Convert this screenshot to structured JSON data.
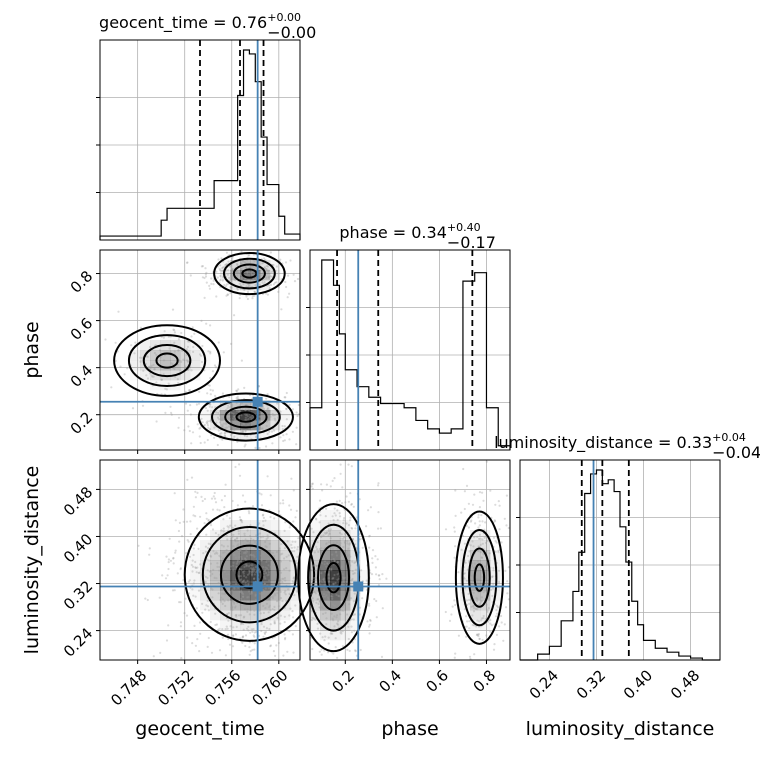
{
  "chart_data": {
    "type": "corner",
    "parameters": [
      "geocent_time",
      "phase",
      "luminosity_distance"
    ],
    "titles": [
      {
        "name": "geocent_time",
        "median": "0.76",
        "plus": "+0.00",
        "minus": "−0.00"
      },
      {
        "name": "phase",
        "median": "0.34",
        "plus": "+0.40",
        "minus": "−0.17"
      },
      {
        "name": "luminosity_distance",
        "median": "0.33",
        "plus": "+0.04",
        "minus": "−0.04"
      }
    ],
    "axes": {
      "geocent_time": {
        "range": [
          0.7448,
          0.7618
        ],
        "ticks": [
          0.748,
          0.752,
          0.756,
          0.76
        ],
        "tick_labels": [
          "0.748",
          "0.752",
          "0.756",
          "0.760"
        ]
      },
      "phase": {
        "range": [
          0.05,
          0.9
        ],
        "ticks": [
          0.2,
          0.4,
          0.6,
          0.8
        ],
        "tick_labels": [
          "0.2",
          "0.4",
          "0.6",
          "0.8"
        ]
      },
      "luminosity_distance": {
        "range": [
          0.19,
          0.53
        ],
        "ticks": [
          0.24,
          0.32,
          0.4,
          0.48
        ],
        "tick_labels": [
          "0.24",
          "0.32",
          "0.40",
          "0.48"
        ]
      }
    },
    "truths": {
      "geocent_time": 0.7582,
      "phase": 0.255,
      "luminosity_distance": 0.315
    },
    "quantiles": {
      "geocent_time": [
        0.7533,
        0.7567,
        0.7587
      ],
      "phase": [
        0.165,
        0.34,
        0.74
      ],
      "luminosity_distance": [
        0.295,
        0.33,
        0.375
      ]
    },
    "marginals": {
      "geocent_time": {
        "edges": [
          0.7448,
          0.75,
          0.7505,
          0.7535,
          0.7545,
          0.7565,
          0.757,
          0.7575,
          0.758,
          0.7585,
          0.759,
          0.76,
          0.7605,
          0.7618
        ],
        "counts": [
          0.02,
          0.1,
          0.16,
          0.16,
          0.3,
          0.73,
          0.96,
          0.94,
          0.8,
          0.52,
          0.28,
          0.12,
          0.03
        ],
        "full_edges_note": ""
      },
      "phase": {
        "edges": [
          0.05,
          0.1,
          0.15,
          0.175,
          0.2,
          0.25,
          0.3,
          0.35,
          0.4,
          0.45,
          0.5,
          0.55,
          0.6,
          0.65,
          0.7,
          0.75,
          0.8,
          0.85,
          0.9
        ],
        "counts": [
          0.2,
          0.9,
          0.78,
          0.55,
          0.38,
          0.3,
          0.25,
          0.22,
          0.22,
          0.2,
          0.14,
          0.1,
          0.08,
          0.1,
          0.8,
          0.84,
          0.2,
          0.02
        ]
      },
      "luminosity_distance": {
        "edges": [
          0.19,
          0.22,
          0.24,
          0.26,
          0.28,
          0.29,
          0.3,
          0.31,
          0.32,
          0.33,
          0.34,
          0.35,
          0.36,
          0.37,
          0.38,
          0.39,
          0.4,
          0.42,
          0.44,
          0.46,
          0.48,
          0.5,
          0.53
        ],
        "counts": [
          0.0,
          0.03,
          0.07,
          0.2,
          0.35,
          0.55,
          0.85,
          0.95,
          0.97,
          0.9,
          0.92,
          0.86,
          0.68,
          0.5,
          0.3,
          0.18,
          0.1,
          0.06,
          0.04,
          0.02,
          0.01,
          0.0
        ]
      }
    },
    "joint_modes": [
      {
        "x": "geocent_time",
        "y": "phase",
        "modes": [
          {
            "x": 0.7575,
            "y": 0.8,
            "sx": 0.0012,
            "sy": 0.035,
            "w": 0.35
          },
          {
            "x": 0.7572,
            "y": 0.19,
            "sx": 0.0016,
            "sy": 0.04,
            "w": 0.45
          },
          {
            "x": 0.7505,
            "y": 0.43,
            "sx": 0.0018,
            "sy": 0.06,
            "w": 0.2
          }
        ]
      },
      {
        "x": "geocent_time",
        "y": "luminosity_distance",
        "modes": [
          {
            "x": 0.7575,
            "y": 0.335,
            "sx": 0.0022,
            "sy": 0.045,
            "w": 1.0
          }
        ]
      },
      {
        "x": "phase",
        "y": "luminosity_distance",
        "modes": [
          {
            "x": 0.15,
            "y": 0.33,
            "sx": 0.06,
            "sy": 0.05,
            "w": 0.62
          },
          {
            "x": 0.77,
            "y": 0.33,
            "sx": 0.04,
            "sy": 0.045,
            "w": 0.38
          }
        ]
      }
    ]
  },
  "colors": {
    "truth": "#4682b4",
    "hist": "#000000",
    "grid": "#b0b0b0",
    "density": "#000000"
  }
}
